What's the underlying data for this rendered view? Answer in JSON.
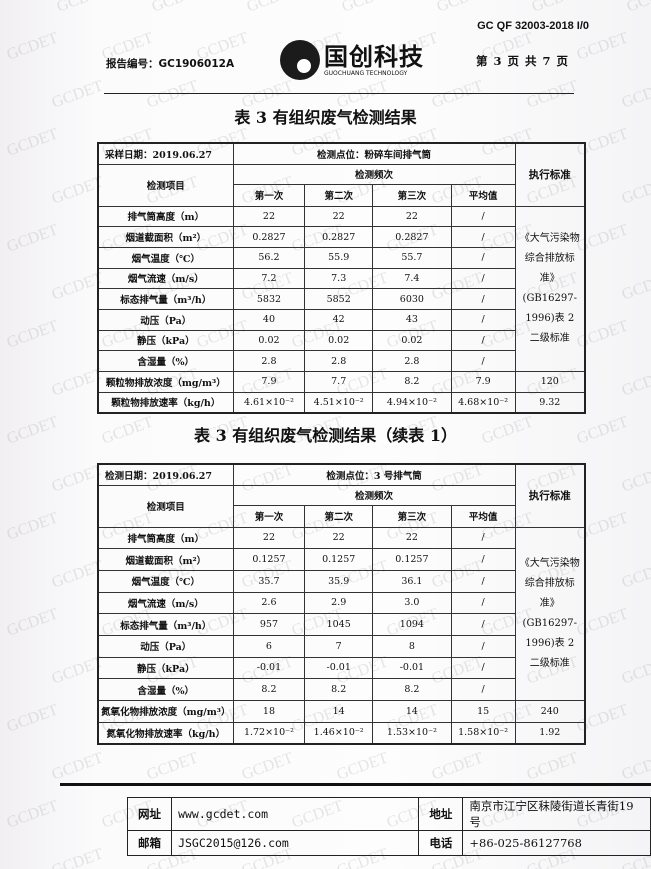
{
  "header": {
    "doc_code": "GC QF 32003-2018 I/0",
    "report_no": "报告编号：GC1906012A",
    "logo_cn": "国创科技",
    "logo_en": "GUOCHUANG TECHNOLOGY",
    "page_info": "第 3 页 共 7 页"
  },
  "watermark": "GCDET",
  "tables": [
    {
      "title": "表 3 有组织废气检测结果",
      "date": "采样日期：2019.06.27",
      "location": "检测点位：粉碎车间排气筒",
      "item_header": "检测项目",
      "freq_header": "检测频次",
      "std_header": "执行标准",
      "columns": [
        "第一次",
        "第二次",
        "第三次",
        "平均值"
      ],
      "rows": [
        [
          "排气筒高度（m）",
          "22",
          "22",
          "22",
          "/"
        ],
        [
          "烟道截面积（m²）",
          "0.2827",
          "0.2827",
          "0.2827",
          "/"
        ],
        [
          "烟气温度（℃）",
          "56.2",
          "55.9",
          "55.7",
          "/"
        ],
        [
          "烟气流速（m/s）",
          "7.2",
          "7.3",
          "7.4",
          "/"
        ],
        [
          "标态排气量（m³/h）",
          "5832",
          "5852",
          "6030",
          "/"
        ],
        [
          "动压（Pa）",
          "40",
          "42",
          "43",
          "/"
        ],
        [
          "静压（kPa）",
          "0.02",
          "0.02",
          "0.02",
          "/"
        ],
        [
          "含湿量（%）",
          "2.8",
          "2.8",
          "2.8",
          "/"
        ],
        [
          "颗粒物排放浓度（mg/m³）",
          "7.9",
          "7.7",
          "8.2",
          "7.9",
          "120"
        ],
        [
          "颗粒物排放速率（kg/h）",
          "4.61×10⁻²",
          "4.51×10⁻²",
          "4.94×10⁻²",
          "4.68×10⁻²",
          "9.32"
        ]
      ],
      "standard": "《大气污染物综合排放标准》(GB16297-1996)表 2 二级标准"
    },
    {
      "title": "表 3 有组织废气检测结果（续表 1）",
      "date": "检测日期：2019.06.27",
      "location": "检测点位：3 号排气筒",
      "item_header": "检测项目",
      "freq_header": "检测频次",
      "std_header": "执行标准",
      "columns": [
        "第一次",
        "第二次",
        "第三次",
        "平均值"
      ],
      "rows": [
        [
          "排气筒高度（m）",
          "22",
          "22",
          "22",
          "/"
        ],
        [
          "烟道截面积（m²）",
          "0.1257",
          "0.1257",
          "0.1257",
          "/"
        ],
        [
          "烟气温度（℃）",
          "35.7",
          "35.9",
          "36.1",
          "/"
        ],
        [
          "烟气流速（m/s）",
          "2.6",
          "2.9",
          "3.0",
          "/"
        ],
        [
          "标态排气量（m³/h）",
          "957",
          "1045",
          "1094",
          "/"
        ],
        [
          "动压（Pa）",
          "6",
          "7",
          "8",
          "/"
        ],
        [
          "静压（kPa）",
          "-0.01",
          "-0.01",
          "-0.01",
          "/"
        ],
        [
          "含湿量（%）",
          "8.2",
          "8.2",
          "8.2",
          "/"
        ],
        [
          "氮氧化物排放浓度（mg/m³）",
          "18",
          "14",
          "14",
          "15",
          "240"
        ],
        [
          "氮氧化物排放速率（kg/h）",
          "1.72×10⁻²",
          "1.46×10⁻²",
          "1.53×10⁻²",
          "1.58×10⁻²",
          "1.92"
        ]
      ],
      "standard": "《大气污染物综合排放标准》(GB16297-1996)表 2 二级标准"
    }
  ],
  "footer": {
    "website_label": "网址",
    "website": "www.gcdet.com",
    "address_label": "地址",
    "address": "南京市江宁区秣陵街道长青街19号",
    "email_label": "邮箱",
    "email": "JSGC2015@126.com",
    "phone_label": "电话",
    "phone": "+86-025-86127768"
  }
}
